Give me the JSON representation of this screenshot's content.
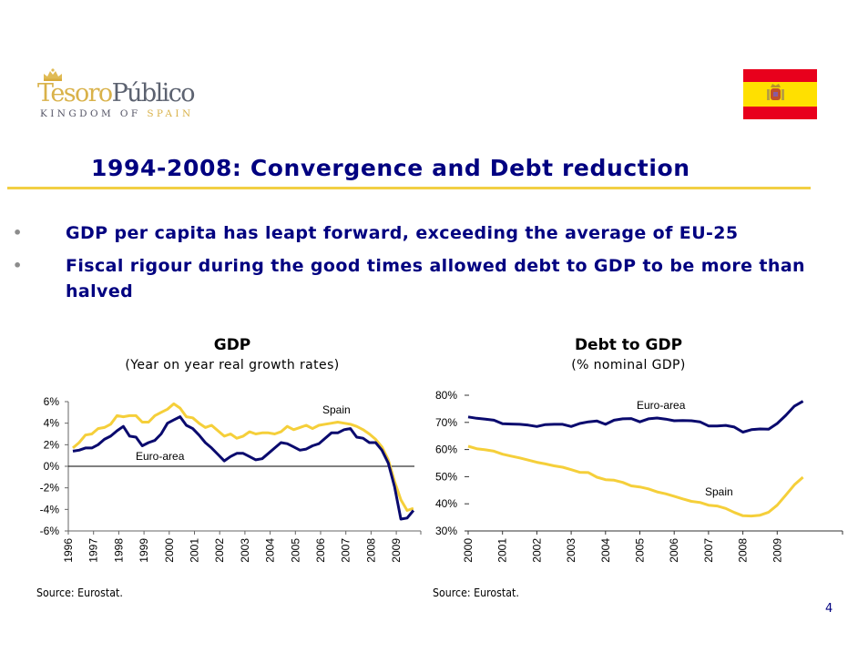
{
  "header": {
    "logo": {
      "brand_part1": "Tesoro",
      "brand_part2": "Público",
      "tagline_part1": "KINGDOM OF ",
      "tagline_part2": "SPAIN",
      "icon": "crown-icon"
    },
    "flag": {
      "icon": "spain-flag-icon",
      "colors": {
        "red": "#e8001c",
        "yellow": "#ffe000"
      }
    }
  },
  "slide": {
    "title": "1994-2008: Convergence and Debt reduction",
    "bullets": [
      {
        "glyph": "•",
        "text": "GDP per capita has leapt forward, exceeding the average of EU-25"
      },
      {
        "glyph": "•",
        "text": "Fiscal rigour during the good times allowed debt to GDP to be more than halved"
      }
    ],
    "page_number": "4"
  },
  "colors": {
    "title": "#000080",
    "euro_area": "#0a0a6e",
    "spain": "#f5cf3a",
    "rule": "#f2cf43"
  },
  "chart_data": [
    {
      "type": "line",
      "title": "GDP",
      "subtitle": "(Year on year real growth rates)",
      "xlabel": "",
      "ylabel": "",
      "source": "Source:  Eurostat.",
      "x_tick_labels": [
        "1996",
        "1997",
        "1998",
        "1999",
        "2000",
        "2001",
        "2002",
        "2003",
        "2004",
        "2005",
        "2006",
        "2007",
        "2008",
        "2009"
      ],
      "y_tick_labels": [
        "6%",
        "4%",
        "2%",
        "0%",
        "-2%",
        "-4%",
        "-6%"
      ],
      "y_ticks": [
        6,
        4,
        2,
        0,
        -2,
        -4,
        -6
      ],
      "ylim": [
        -6,
        6
      ],
      "xlim": [
        1996,
        2009.85
      ],
      "zero_line": true,
      "grid": false,
      "x": [
        1996.0,
        1996.25,
        1996.5,
        1996.75,
        1997.0,
        1997.25,
        1997.5,
        1997.75,
        1998.0,
        1998.25,
        1998.5,
        1998.75,
        1999.0,
        1999.25,
        1999.5,
        1999.75,
        2000.0,
        2000.25,
        2000.5,
        2000.75,
        2001.0,
        2001.25,
        2001.5,
        2001.75,
        2002.0,
        2002.25,
        2002.5,
        2002.75,
        2003.0,
        2003.25,
        2003.5,
        2003.75,
        2004.0,
        2004.25,
        2004.5,
        2004.75,
        2005.0,
        2005.25,
        2005.5,
        2005.75,
        2006.0,
        2006.25,
        2006.5,
        2006.75,
        2007.0,
        2007.25,
        2007.5,
        2007.75,
        2008.0,
        2008.25,
        2008.5,
        2008.75,
        2009.0,
        2009.25,
        2009.5
      ],
      "series": [
        {
          "name": "Spain",
          "label_text": "Spain",
          "values": [
            1.7,
            2.2,
            2.9,
            3.0,
            3.5,
            3.6,
            3.9,
            4.7,
            4.6,
            4.7,
            4.7,
            4.1,
            4.1,
            4.7,
            5.0,
            5.3,
            5.8,
            5.4,
            4.6,
            4.5,
            4.0,
            3.6,
            3.8,
            3.3,
            2.8,
            3.0,
            2.6,
            2.8,
            3.2,
            3.0,
            3.1,
            3.1,
            3.0,
            3.2,
            3.7,
            3.4,
            3.6,
            3.8,
            3.5,
            3.8,
            3.9,
            4.0,
            4.1,
            4.0,
            3.9,
            3.7,
            3.4,
            3.0,
            2.5,
            1.8,
            0.6,
            -1.4,
            -3.1,
            -4.1,
            -3.9
          ]
        },
        {
          "name": "Euro-area",
          "label_text": "Euro-area",
          "values": [
            1.4,
            1.5,
            1.7,
            1.7,
            2.0,
            2.5,
            2.8,
            3.3,
            3.7,
            2.8,
            2.7,
            1.9,
            2.2,
            2.4,
            3.0,
            4.0,
            4.3,
            4.6,
            3.8,
            3.5,
            2.9,
            2.2,
            1.7,
            1.1,
            0.5,
            0.9,
            1.2,
            1.2,
            0.9,
            0.6,
            0.7,
            1.2,
            1.7,
            2.2,
            2.1,
            1.8,
            1.5,
            1.6,
            1.9,
            2.1,
            2.6,
            3.1,
            3.1,
            3.4,
            3.5,
            2.7,
            2.6,
            2.2,
            2.2,
            1.5,
            0.3,
            -1.9,
            -4.9,
            -4.8,
            -4.1
          ]
        }
      ]
    },
    {
      "type": "line",
      "title": "Debt to GDP",
      "subtitle": "(% nominal GDP)",
      "xlabel": "",
      "ylabel": "",
      "source": "Source:  Eurostat.",
      "x_tick_labels": [
        "2000",
        "2001",
        "2002",
        "2003",
        "2004",
        "2005",
        "2006",
        "2007",
        "2008",
        "2009"
      ],
      "y_tick_labels": [
        "80%",
        "70%",
        "60%",
        "50%",
        "40%",
        "30%"
      ],
      "y_ticks": [
        80,
        70,
        60,
        50,
        40,
        30
      ],
      "ylim": [
        30,
        80
      ],
      "xlim": [
        2000,
        2010.4
      ],
      "grid": false,
      "x": [
        2000.0,
        2000.25,
        2000.5,
        2000.75,
        2001.0,
        2001.25,
        2001.5,
        2001.75,
        2002.0,
        2002.25,
        2002.5,
        2002.75,
        2003.0,
        2003.25,
        2003.5,
        2003.75,
        2004.0,
        2004.25,
        2004.5,
        2004.75,
        2005.0,
        2005.25,
        2005.5,
        2005.75,
        2006.0,
        2006.25,
        2006.5,
        2006.75,
        2007.0,
        2007.25,
        2007.5,
        2007.75,
        2008.0,
        2008.25,
        2008.5,
        2008.75,
        2009.0,
        2009.25,
        2009.5,
        2009.75
      ],
      "series": [
        {
          "name": "Euro-area",
          "label_text": "Euro-area",
          "values": [
            72.0,
            71.5,
            71.2,
            70.8,
            69.5,
            69.4,
            69.3,
            69.0,
            68.5,
            69.2,
            69.3,
            69.3,
            68.5,
            69.6,
            70.2,
            70.5,
            69.3,
            70.8,
            71.3,
            71.4,
            70.2,
            71.3,
            71.6,
            71.2,
            70.6,
            70.7,
            70.6,
            70.2,
            68.7,
            68.7,
            68.9,
            68.3,
            66.4,
            67.3,
            67.6,
            67.5,
            69.6,
            72.6,
            76.0,
            77.8
          ]
        },
        {
          "name": "Spain",
          "label_text": "Spain",
          "values": [
            61.2,
            60.3,
            59.9,
            59.4,
            58.3,
            57.6,
            56.9,
            56.1,
            55.3,
            54.7,
            54.0,
            53.5,
            52.6,
            51.6,
            51.5,
            49.8,
            48.9,
            48.7,
            47.9,
            46.6,
            46.2,
            45.5,
            44.4,
            43.7,
            42.8,
            41.8,
            40.9,
            40.5,
            39.5,
            39.2,
            38.3,
            36.8,
            35.6,
            35.5,
            35.8,
            36.9,
            39.5,
            43.2,
            47.0,
            49.8
          ]
        }
      ]
    }
  ]
}
